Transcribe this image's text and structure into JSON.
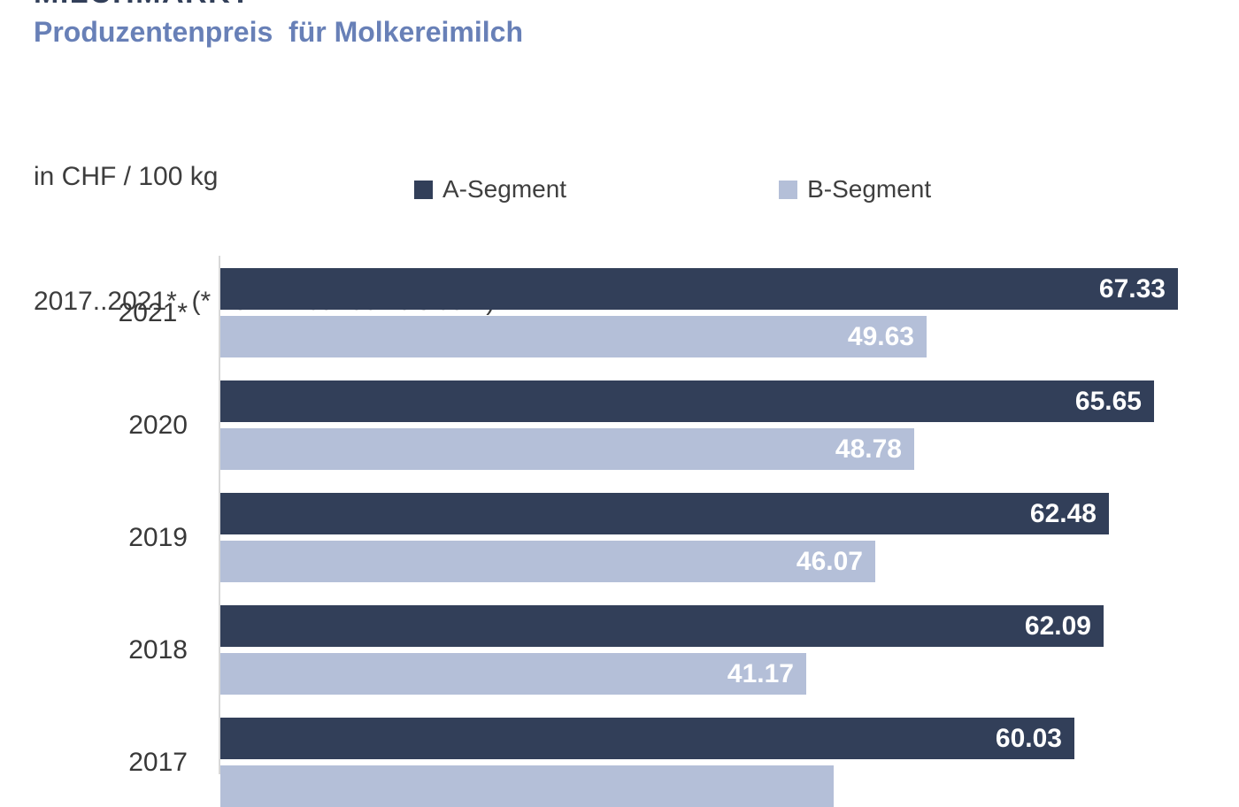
{
  "header": {
    "title": "MILCHMARKT",
    "subtitle": "Produzentenpreis  für Molkereimilch",
    "unit_line": "in CHF / 100 kg",
    "period_line": "2017..2021*  (* 2021 = Januar bis Juni)"
  },
  "legend": [
    {
      "label": "A-Segment",
      "color": "#323F59"
    },
    {
      "label": "B-Segment",
      "color": "#B4BFD8"
    }
  ],
  "colors": {
    "a_segment": "#323F59",
    "b_segment": "#B4BFD8",
    "subtitle_blue": "#6880B7",
    "text_dark": "#3D3D3D",
    "axis_line": "#D8D8D8",
    "bar_value_text": "#FFFFFF"
  },
  "chart_data": {
    "type": "bar",
    "orientation": "horizontal",
    "title": "Produzentenpreis für Molkereimilch",
    "unit": "CHF / 100 kg",
    "categories": [
      "2021*",
      "2020",
      "2019",
      "2018",
      "2017"
    ],
    "series": [
      {
        "name": "A-Segment",
        "color": "#323F59",
        "values": [
          67.33,
          65.65,
          62.48,
          62.09,
          60.03
        ],
        "labels": [
          "67.33",
          "65.65",
          "62.48",
          "62.09",
          "60.03"
        ]
      },
      {
        "name": "B-Segment",
        "color": "#B4BFD8",
        "values": [
          49.63,
          48.78,
          46.07,
          41.17,
          43.1
        ],
        "labels": [
          "49.63",
          "48.78",
          "46.07",
          "41.17",
          ""
        ]
      }
    ],
    "xlim": [
      0,
      71.7
    ],
    "legend_position": "top",
    "grid": false,
    "value_labels_inside_bars": true,
    "note": "Chart is cropped at top (title) and bottom (2017 B-Segment bar); 2017 B value estimated from bar length, its label is not visible"
  }
}
